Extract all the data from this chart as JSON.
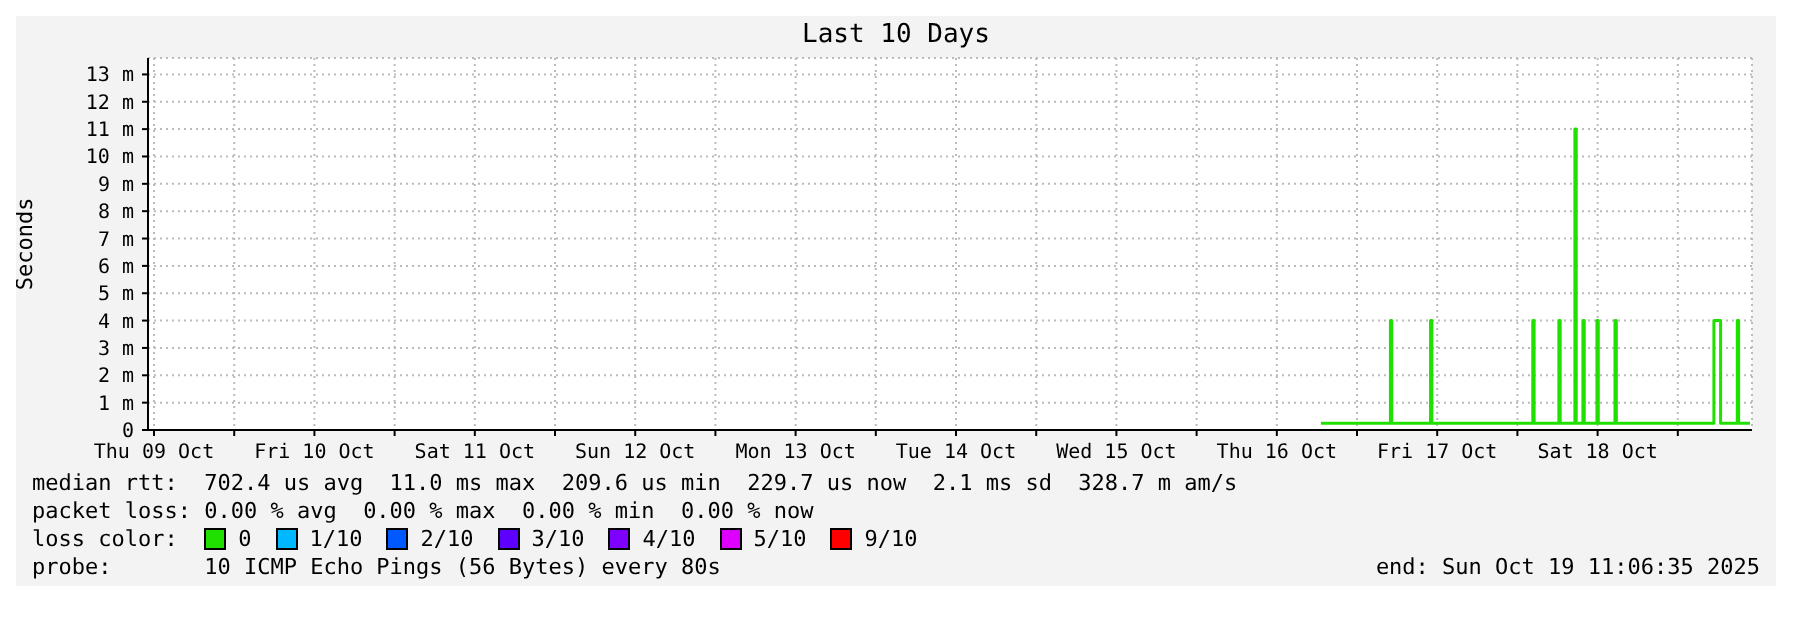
{
  "chart_data": {
    "type": "line",
    "title": "Last 10 Days",
    "ylabel": "Seconds",
    "legend_title": "loss color:",
    "legend": "bottom",
    "grid": true,
    "marker": "none",
    "line_style": "solid",
    "xlim": [
      "2025-10-09T11:06",
      "2025-10-19T11:06"
    ],
    "xticks": [
      {
        "value": "2025-10-09T12:00",
        "label": "Thu 09 Oct"
      },
      {
        "value": "2025-10-10T00:00",
        "label": null
      },
      {
        "value": "2025-10-10T12:00",
        "label": "Fri 10 Oct"
      },
      {
        "value": "2025-10-11T00:00",
        "label": null
      },
      {
        "value": "2025-10-11T12:00",
        "label": "Sat 11 Oct"
      },
      {
        "value": "2025-10-12T00:00",
        "label": null
      },
      {
        "value": "2025-10-12T12:00",
        "label": "Sun 12 Oct"
      },
      {
        "value": "2025-10-13T00:00",
        "label": null
      },
      {
        "value": "2025-10-13T12:00",
        "label": "Mon 13 Oct"
      },
      {
        "value": "2025-10-14T00:00",
        "label": null
      },
      {
        "value": "2025-10-14T12:00",
        "label": "Tue 14 Oct"
      },
      {
        "value": "2025-10-15T00:00",
        "label": null
      },
      {
        "value": "2025-10-15T12:00",
        "label": "Wed 15 Oct"
      },
      {
        "value": "2025-10-16T00:00",
        "label": null
      },
      {
        "value": "2025-10-16T12:00",
        "label": "Thu 16 Oct"
      },
      {
        "value": "2025-10-17T00:00",
        "label": null
      },
      {
        "value": "2025-10-17T12:00",
        "label": "Fri 17 Oct"
      },
      {
        "value": "2025-10-18T00:00",
        "label": null
      },
      {
        "value": "2025-10-18T12:00",
        "label": "Sat 18 Oct"
      },
      {
        "value": "2025-10-19T00:00",
        "label": null
      }
    ],
    "ylim": [
      0,
      13.6
    ],
    "yticks": [
      0,
      {
        "value": 1,
        "label": "1 m"
      },
      {
        "value": 2,
        "label": "2 m"
      },
      {
        "value": 3,
        "label": "3 m"
      },
      {
        "value": 4,
        "label": "4 m"
      },
      {
        "value": 5,
        "label": "5 m"
      },
      {
        "value": 6,
        "label": "6 m"
      },
      {
        "value": 7,
        "label": "7 m"
      },
      {
        "value": 8,
        "label": "8 m"
      },
      {
        "value": 9,
        "label": "9 m"
      },
      {
        "value": 10,
        "label": "10 m"
      },
      {
        "value": 11,
        "label": "11 m"
      },
      {
        "value": 12,
        "label": "12 m"
      },
      {
        "value": 13,
        "label": "13 m"
      }
    ],
    "series": [
      {
        "name": "0",
        "color": "#20e000",
        "x": [
          "2025-10-16T18:36",
          "2025-10-17T05:00",
          "2025-10-17T05:00",
          "2025-10-17T05:12",
          "2025-10-17T05:12",
          "2025-10-17T11:00",
          "2025-10-17T11:00",
          "2025-10-17T11:12",
          "2025-10-17T11:12",
          "2025-10-18T02:18",
          "2025-10-18T02:18",
          "2025-10-18T02:30",
          "2025-10-18T02:30",
          "2025-10-18T06:12",
          "2025-10-18T06:12",
          "2025-10-18T06:24",
          "2025-10-18T06:24",
          "2025-10-18T08:36",
          "2025-10-18T08:36",
          "2025-10-18T08:48",
          "2025-10-18T08:48",
          "2025-10-18T09:48",
          "2025-10-18T09:48",
          "2025-10-18T10:00",
          "2025-10-18T10:00",
          "2025-10-18T11:54",
          "2025-10-18T11:54",
          "2025-10-18T12:06",
          "2025-10-18T12:06",
          "2025-10-18T14:36",
          "2025-10-18T14:36",
          "2025-10-18T14:48",
          "2025-10-18T14:48",
          "2025-10-19T05:24",
          "2025-10-19T05:24",
          "2025-10-19T06:24",
          "2025-10-19T06:24",
          "2025-10-19T08:54",
          "2025-10-19T08:54",
          "2025-10-19T09:06",
          "2025-10-19T09:06",
          "2025-10-19T10:48"
        ],
        "values": [
          0.25,
          0.25,
          4,
          4,
          0.25,
          0.25,
          4,
          4,
          0.25,
          0.25,
          4,
          4,
          0.25,
          0.25,
          4,
          4,
          0.25,
          0.25,
          11,
          11,
          0.25,
          0.25,
          4,
          4,
          0.25,
          0.25,
          4,
          4,
          0.25,
          0.25,
          4,
          4,
          0.25,
          0.25,
          4,
          4,
          0.25,
          0.25,
          4,
          4,
          0.25,
          0.25
        ]
      },
      {
        "name": "1/10",
        "color": "#00b8ff"
      },
      {
        "name": "2/10",
        "color": "#0059ff"
      },
      {
        "name": "3/10",
        "color": "#5e00ff"
      },
      {
        "name": "4/10",
        "color": "#7e00ff"
      },
      {
        "name": "5/10",
        "color": "#dd00ff"
      },
      {
        "name": "9/10",
        "color": "#ff0000"
      }
    ],
    "annotations": [
      "median rtt:  702.4 us avg  11.0 ms max  209.6 us min  229.7 us now  2.1 ms sd  328.7 m am/s",
      "packet loss: 0.00 % avg  0.00 % max  0.00 % min  0.00 % now",
      "probe:       10 ICMP Echo Pings (56 Bytes) every 80s",
      "end: Sun Oct 19 11:06:35 2025"
    ]
  }
}
